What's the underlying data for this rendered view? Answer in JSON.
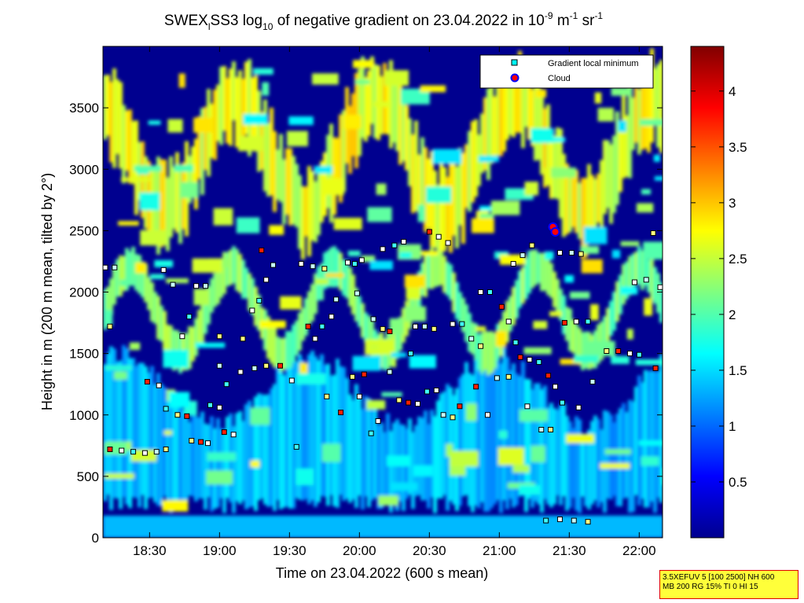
{
  "chart_data": {
    "type": "heatmap",
    "title": {
      "main": "SWEX",
      "sub": "l",
      "mid": "SS3 log",
      "sub2": "10",
      "rest": " of negative gradient on 23.04.2022 in 10",
      "sup1": "-9",
      "unit1": " m",
      "sup2": "-1",
      "unit2": " sr",
      "sup3": "-1"
    },
    "xlabel": "Time on 23.04.2022 (600 s mean)",
    "ylabel": "Height in m (200 m mean, tilted by 2°)",
    "x_ticks": [
      {
        "label": "18:30",
        "minutes": 1110
      },
      {
        "label": "19:00",
        "minutes": 1140
      },
      {
        "label": "19:30",
        "minutes": 1170
      },
      {
        "label": "20:00",
        "minutes": 1200
      },
      {
        "label": "20:30",
        "minutes": 1230
      },
      {
        "label": "21:00",
        "minutes": 1260
      },
      {
        "label": "21:30",
        "minutes": 1290
      },
      {
        "label": "22:00",
        "minutes": 1320
      }
    ],
    "xlim_minutes": [
      1090,
      1330
    ],
    "y_ticks": [
      0,
      500,
      1000,
      1500,
      2000,
      2500,
      3000,
      3500
    ],
    "ylim": [
      0,
      4000
    ],
    "colorbar": {
      "ticks": [
        0.5,
        1,
        1.5,
        2,
        2.5,
        3,
        3.5,
        4
      ],
      "range": [
        0,
        4.4
      ],
      "colormap": "jet"
    },
    "legend": {
      "position": "top-right",
      "entries": [
        {
          "label": "Gradient local minimum",
          "marker": "square",
          "color": "#00ffff"
        },
        {
          "label": "Cloud",
          "marker": "circle",
          "color": "#ff0000",
          "edge": "#0000ff"
        }
      ]
    },
    "layers": [
      {
        "name": "surface",
        "height_range": [
          0,
          180
        ],
        "value": 1.4
      },
      {
        "name": "boundary_layer",
        "height_range": [
          180,
          1500
        ],
        "value": 1.3
      },
      {
        "name": "lower_cloud_band",
        "height_range": [
          1500,
          2500
        ],
        "value": 2.2
      },
      {
        "name": "upper_band",
        "height_range": [
          2600,
          3900
        ],
        "value": 2.6
      }
    ],
    "gradient_minima": [
      {
        "minutes": 1091,
        "height": 2200
      },
      {
        "minutes": 1095,
        "height": 2200
      },
      {
        "minutes": 1093,
        "height": 1720
      },
      {
        "minutes": 1093,
        "height": 720
      },
      {
        "minutes": 1098,
        "height": 710
      },
      {
        "minutes": 1103,
        "height": 700
      },
      {
        "minutes": 1108,
        "height": 690
      },
      {
        "minutes": 1113,
        "height": 700
      },
      {
        "minutes": 1117,
        "height": 720
      },
      {
        "minutes": 1109,
        "height": 1270
      },
      {
        "minutes": 1114,
        "height": 1240
      },
      {
        "minutes": 1117,
        "height": 1050
      },
      {
        "minutes": 1116,
        "height": 2180
      },
      {
        "minutes": 1120,
        "height": 2060
      },
      {
        "minutes": 1122,
        "height": 1000
      },
      {
        "minutes": 1126,
        "height": 990
      },
      {
        "minutes": 1124,
        "height": 1640
      },
      {
        "minutes": 1127,
        "height": 1800
      },
      {
        "minutes": 1130,
        "height": 2050
      },
      {
        "minutes": 1134,
        "height": 2050
      },
      {
        "minutes": 1128,
        "height": 790
      },
      {
        "minutes": 1132,
        "height": 780
      },
      {
        "minutes": 1135,
        "height": 770
      },
      {
        "minutes": 1136,
        "height": 1080
      },
      {
        "minutes": 1140,
        "height": 1060
      },
      {
        "minutes": 1140,
        "height": 1400
      },
      {
        "minutes": 1140,
        "height": 1640
      },
      {
        "minutes": 1142,
        "height": 860
      },
      {
        "minutes": 1146,
        "height": 840
      },
      {
        "minutes": 1143,
        "height": 1250
      },
      {
        "minutes": 1149,
        "height": 1350
      },
      {
        "minutes": 1155,
        "height": 1380
      },
      {
        "minutes": 1160,
        "height": 1400
      },
      {
        "minutes": 1166,
        "height": 1400
      },
      {
        "minutes": 1154,
        "height": 1850
      },
      {
        "minutes": 1157,
        "height": 1930
      },
      {
        "minutes": 1160,
        "height": 2100
      },
      {
        "minutes": 1163,
        "height": 2220
      },
      {
        "minutes": 1150,
        "height": 1620
      },
      {
        "minutes": 1158,
        "height": 2340
      },
      {
        "minutes": 1171,
        "height": 1280
      },
      {
        "minutes": 1173,
        "height": 740
      },
      {
        "minutes": 1175,
        "height": 2230
      },
      {
        "minutes": 1180,
        "height": 2210
      },
      {
        "minutes": 1185,
        "height": 2190
      },
      {
        "minutes": 1178,
        "height": 1720
      },
      {
        "minutes": 1181,
        "height": 1620
      },
      {
        "minutes": 1184,
        "height": 1720
      },
      {
        "minutes": 1188,
        "height": 1800
      },
      {
        "minutes": 1190,
        "height": 1940
      },
      {
        "minutes": 1186,
        "height": 1150
      },
      {
        "minutes": 1192,
        "height": 1020
      },
      {
        "minutes": 1195,
        "height": 2240
      },
      {
        "minutes": 1198,
        "height": 2230
      },
      {
        "minutes": 1201,
        "height": 2260
      },
      {
        "minutes": 1199,
        "height": 1990
      },
      {
        "minutes": 1197,
        "height": 1310
      },
      {
        "minutes": 1202,
        "height": 1330
      },
      {
        "minutes": 1200,
        "height": 1150
      },
      {
        "minutes": 1205,
        "height": 850
      },
      {
        "minutes": 1208,
        "height": 950
      },
      {
        "minutes": 1206,
        "height": 1780
      },
      {
        "minutes": 1210,
        "height": 1700
      },
      {
        "minutes": 1213,
        "height": 1680
      },
      {
        "minutes": 1210,
        "height": 2350
      },
      {
        "minutes": 1215,
        "height": 2380
      },
      {
        "minutes": 1219,
        "height": 2410
      },
      {
        "minutes": 1213,
        "height": 1350
      },
      {
        "minutes": 1217,
        "height": 1120
      },
      {
        "minutes": 1221,
        "height": 1100
      },
      {
        "minutes": 1225,
        "height": 1090
      },
      {
        "minutes": 1222,
        "height": 1500
      },
      {
        "minutes": 1224,
        "height": 1720
      },
      {
        "minutes": 1228,
        "height": 1720
      },
      {
        "minutes": 1232,
        "height": 1700
      },
      {
        "minutes": 1230,
        "height": 2490
      },
      {
        "minutes": 1234,
        "height": 2450
      },
      {
        "minutes": 1229,
        "height": 1190
      },
      {
        "minutes": 1233,
        "height": 1200
      },
      {
        "minutes": 1236,
        "height": 1000
      },
      {
        "minutes": 1240,
        "height": 980
      },
      {
        "minutes": 1243,
        "height": 1070
      },
      {
        "minutes": 1240,
        "height": 1740
      },
      {
        "minutes": 1244,
        "height": 1740
      },
      {
        "minutes": 1238,
        "height": 2400
      },
      {
        "minutes": 1248,
        "height": 1620
      },
      {
        "minutes": 1252,
        "height": 1560
      },
      {
        "minutes": 1250,
        "height": 1230
      },
      {
        "minutes": 1252,
        "height": 2000
      },
      {
        "minutes": 1256,
        "height": 2000
      },
      {
        "minutes": 1255,
        "height": 1000
      },
      {
        "minutes": 1259,
        "height": 1300
      },
      {
        "minutes": 1264,
        "height": 1310
      },
      {
        "minutes": 1261,
        "height": 1880
      },
      {
        "minutes": 1264,
        "height": 1760
      },
      {
        "minutes": 1267,
        "height": 1590
      },
      {
        "minutes": 1266,
        "height": 2230
      },
      {
        "minutes": 1270,
        "height": 2300
      },
      {
        "minutes": 1274,
        "height": 2380
      },
      {
        "minutes": 1269,
        "height": 1470
      },
      {
        "minutes": 1273,
        "height": 1450
      },
      {
        "minutes": 1277,
        "height": 1430
      },
      {
        "minutes": 1272,
        "height": 1070
      },
      {
        "minutes": 1278,
        "height": 880
      },
      {
        "minutes": 1282,
        "height": 880
      },
      {
        "minutes": 1281,
        "height": 1320
      },
      {
        "minutes": 1284,
        "height": 1230
      },
      {
        "minutes": 1287,
        "height": 1100
      },
      {
        "minutes": 1286,
        "height": 2320
      },
      {
        "minutes": 1291,
        "height": 2320
      },
      {
        "minutes": 1295,
        "height": 2310
      },
      {
        "minutes": 1288,
        "height": 1750
      },
      {
        "minutes": 1293,
        "height": 1760
      },
      {
        "minutes": 1298,
        "height": 1760
      },
      {
        "minutes": 1294,
        "height": 1060
      },
      {
        "minutes": 1300,
        "height": 1270
      },
      {
        "minutes": 1306,
        "height": 1520
      },
      {
        "minutes": 1311,
        "height": 1520
      },
      {
        "minutes": 1316,
        "height": 1500
      },
      {
        "minutes": 1320,
        "height": 1490
      },
      {
        "minutes": 1318,
        "height": 2080
      },
      {
        "minutes": 1323,
        "height": 2100
      },
      {
        "minutes": 1326,
        "height": 2480
      },
      {
        "minutes": 1327,
        "height": 1380
      },
      {
        "minutes": 1329,
        "height": 2040
      },
      {
        "minutes": 1280,
        "height": 140
      },
      {
        "minutes": 1286,
        "height": 150
      },
      {
        "minutes": 1292,
        "height": 140
      },
      {
        "minutes": 1298,
        "height": 130
      }
    ],
    "cloud_points": [
      {
        "minutes": 1283,
        "height": 2530
      },
      {
        "minutes": 1284,
        "height": 2490
      }
    ]
  },
  "info_box": {
    "line1": "3.5XEFUV 5 [100 2500] NH 600",
    "line2": "MB 200 RG 15% TI 0 HI 15"
  }
}
